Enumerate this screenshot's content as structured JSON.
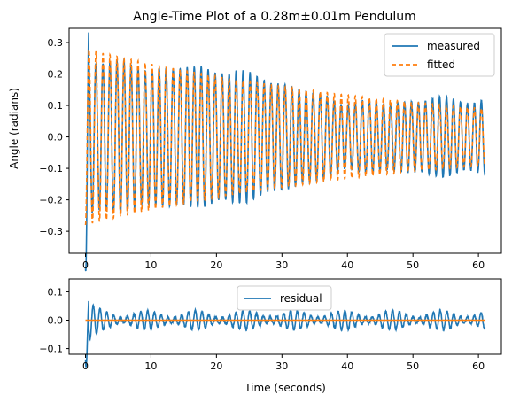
{
  "chart_data": [
    {
      "type": "line",
      "title": "Angle-Time Plot of a 0.28m±0.01m Pendulum",
      "xlabel": "",
      "ylabel": "Angle (radians)",
      "xlim": [
        -2.5,
        63.5
      ],
      "ylim": [
        -0.37,
        0.345
      ],
      "xticks": [
        0,
        10,
        20,
        30,
        40,
        50,
        60
      ],
      "xtick_labels": [
        "0",
        "10",
        "20",
        "30",
        "40",
        "50",
        "60"
      ],
      "yticks": [
        -0.3,
        -0.2,
        -0.1,
        0.0,
        0.1,
        0.2,
        0.3
      ],
      "ytick_labels": [
        "−0.3",
        "−0.2",
        "−0.1",
        "0.0",
        "0.1",
        "0.2",
        "0.3"
      ],
      "grid": false,
      "legend_position": "top-right",
      "model": {
        "t_start": 0,
        "t_end": 61,
        "amplitude0": 0.28,
        "amplitude_end": 0.09,
        "period": 1.07,
        "phase": 3.14159,
        "offset": 0.0
      },
      "series": [
        {
          "name": "measured",
          "style": "solid",
          "color": "#1f77b4",
          "amplitude0": 0.32
        },
        {
          "name": "fitted",
          "style": "dashed",
          "color": "#ff7f0e",
          "amplitude0": 0.28
        }
      ]
    },
    {
      "type": "line",
      "title": "",
      "xlabel": "Time (seconds)",
      "ylabel": "",
      "xlim": [
        -2.5,
        63.5
      ],
      "ylim": [
        -0.12,
        0.145
      ],
      "xticks": [
        0,
        10,
        20,
        30,
        40,
        50,
        60
      ],
      "xtick_labels": [
        "0",
        "10",
        "20",
        "30",
        "40",
        "50",
        "60"
      ],
      "yticks": [
        -0.1,
        0.0,
        0.1
      ],
      "ytick_labels": [
        "−0.1",
        "0.0",
        "0.1"
      ],
      "grid": false,
      "legend_position": "top-center",
      "series": [
        {
          "name": "residual",
          "style": "solid",
          "color": "#1f77b4",
          "typical_amplitude": 0.03,
          "peak_start": 0.13
        },
        {
          "name": "",
          "style": "solid",
          "color": "#ff7f0e",
          "constant": 0.0
        }
      ]
    }
  ]
}
